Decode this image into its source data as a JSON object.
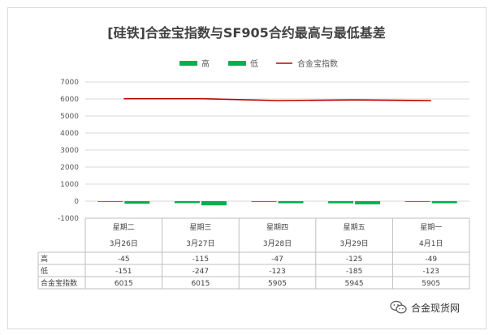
{
  "chart_data": {
    "type": "bar",
    "title": "[硅铁]合金宝指数与SF905合约最高与最低基差",
    "categories": [
      {
        "day": "星期二",
        "date": "3月26日"
      },
      {
        "day": "星期三",
        "date": "3月27日"
      },
      {
        "day": "星期四",
        "date": "3月28日"
      },
      {
        "day": "星期五",
        "date": "3月29日"
      },
      {
        "day": "星期一",
        "date": "4月1日"
      }
    ],
    "series": [
      {
        "name": "高",
        "type": "bar",
        "color": "#00b050",
        "values": [
          -45,
          -115,
          -47,
          -125,
          -49
        ]
      },
      {
        "name": "低",
        "type": "bar",
        "color": "#00b050",
        "values": [
          -151,
          -247,
          -123,
          -185,
          -123
        ]
      },
      {
        "name": "合金宝指数",
        "type": "line",
        "color": "#c00000",
        "values": [
          6015,
          6015,
          5905,
          5945,
          5905
        ]
      }
    ],
    "ylim": [
      -1000,
      7000
    ],
    "yticks": [
      "7000",
      "6000",
      "5000",
      "4000",
      "3000",
      "2000",
      "1000",
      "0",
      "-1000"
    ],
    "grid": true,
    "legend_position": "top",
    "data_table": true
  },
  "watermark": {
    "text": "合金现货网",
    "icon": "wechat-icon"
  }
}
